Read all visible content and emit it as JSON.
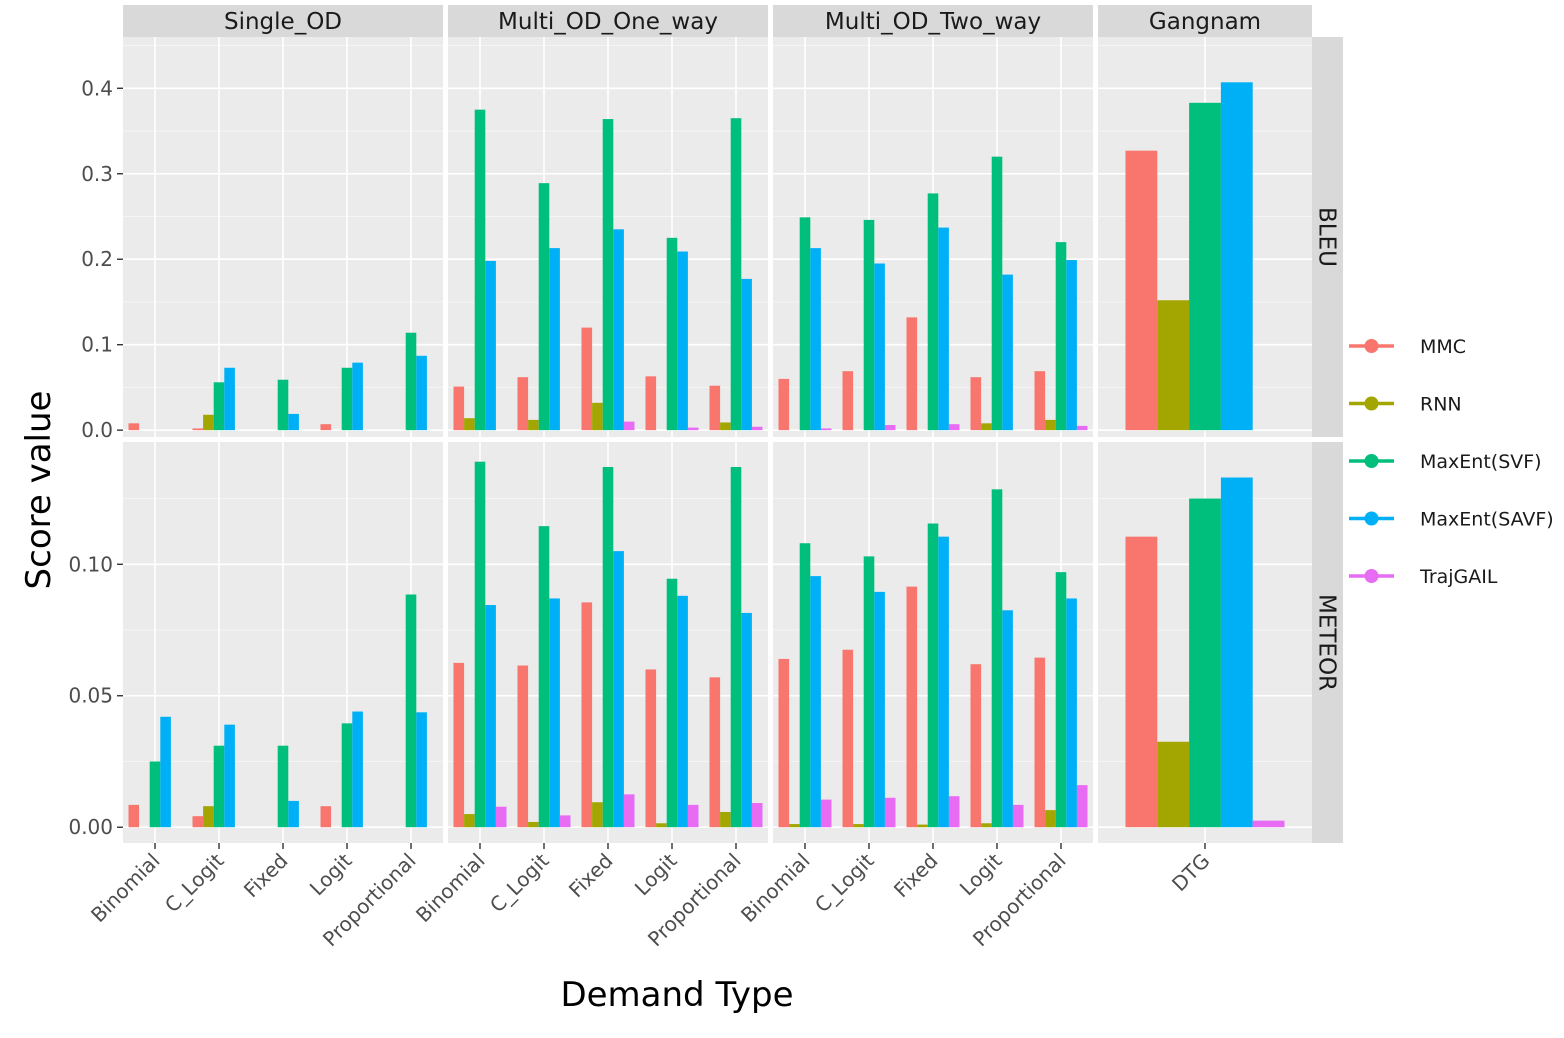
{
  "chart_data": {
    "type": "bar",
    "xlabel": "Demand Type",
    "ylabel": "Score value",
    "series_names": [
      "MMC",
      "RNN",
      "MaxEnt(SVF)",
      "MaxEnt(SAVF)",
      "TrajGAIL"
    ],
    "colors": {
      "MMC": "#F8766D",
      "RNN": "#A3A500",
      "MaxEnt(SVF)": "#00BF7D",
      "MaxEnt(SAVF)": "#00B0F6",
      "TrajGAIL": "#E76BF3"
    },
    "columns": [
      {
        "name": "Single_OD",
        "categories": [
          "Binomial",
          "C_Logit",
          "Fixed",
          "Logit",
          "Proportional"
        ]
      },
      {
        "name": "Multi_OD_One_way",
        "categories": [
          "Binomial",
          "C_Logit",
          "Fixed",
          "Logit",
          "Proportional"
        ]
      },
      {
        "name": "Multi_OD_Two_way",
        "categories": [
          "Binomial",
          "C_Logit",
          "Fixed",
          "Logit",
          "Proportional"
        ]
      },
      {
        "name": "Gangnam",
        "categories": [
          "DTG"
        ]
      }
    ],
    "rows": [
      {
        "name": "BLEU",
        "ylim": [
          -0.008,
          0.46
        ],
        "ticks": [
          0.0,
          0.1,
          0.2,
          0.3,
          0.4
        ],
        "tick_labels": [
          "0.0",
          "0.1",
          "0.2",
          "0.3",
          "0.4"
        ]
      },
      {
        "name": "METEOR",
        "ylim": [
          -0.006,
          0.1465
        ],
        "ticks": [
          0.0,
          0.05,
          0.1
        ],
        "tick_labels": [
          "0.00",
          "0.05",
          "0.10"
        ]
      }
    ],
    "values": {
      "BLEU": {
        "Single_OD": [
          [
            0.008,
            0.0,
            0.0,
            0.0,
            0.0
          ],
          [
            0.002,
            0.018,
            0.056,
            0.073,
            0.0
          ],
          [
            0.0,
            0.0,
            0.059,
            0.019,
            0.0
          ],
          [
            0.007,
            0.0,
            0.073,
            0.079,
            0.0
          ],
          [
            0.0,
            0.0,
            0.114,
            0.087,
            0.0
          ]
        ],
        "Multi_OD_One_way": [
          [
            0.051,
            0.014,
            0.375,
            0.198,
            0.0
          ],
          [
            0.062,
            0.012,
            0.289,
            0.213,
            0.0
          ],
          [
            0.12,
            0.032,
            0.364,
            0.235,
            0.01
          ],
          [
            0.063,
            0.0,
            0.225,
            0.209,
            0.003
          ],
          [
            0.052,
            0.009,
            0.365,
            0.177,
            0.004
          ]
        ],
        "Multi_OD_Two_way": [
          [
            0.06,
            0.0,
            0.249,
            0.213,
            0.002
          ],
          [
            0.069,
            0.0,
            0.246,
            0.195,
            0.006
          ],
          [
            0.132,
            0.0,
            0.277,
            0.237,
            0.007
          ],
          [
            0.062,
            0.008,
            0.32,
            0.182,
            0.0
          ],
          [
            0.069,
            0.012,
            0.22,
            0.199,
            0.005
          ]
        ],
        "Gangnam": [
          [
            0.327,
            0.152,
            0.383,
            0.407,
            0.0
          ]
        ]
      },
      "METEOR": {
        "Single_OD": [
          [
            0.0085,
            0.0,
            0.025,
            0.042,
            0.0
          ],
          [
            0.0042,
            0.008,
            0.031,
            0.039,
            0.0
          ],
          [
            0.0,
            0.0,
            0.031,
            0.01,
            0.0
          ],
          [
            0.008,
            0.0,
            0.0395,
            0.044,
            0.0
          ],
          [
            0.0,
            0.0,
            0.0885,
            0.0437,
            0.0
          ]
        ],
        "Multi_OD_One_way": [
          [
            0.0625,
            0.005,
            0.139,
            0.0845,
            0.0078
          ],
          [
            0.0615,
            0.002,
            0.1145,
            0.087,
            0.0045
          ],
          [
            0.0855,
            0.0095,
            0.137,
            0.105,
            0.0125
          ],
          [
            0.06,
            0.0015,
            0.0945,
            0.088,
            0.0085
          ],
          [
            0.057,
            0.0058,
            0.137,
            0.0815,
            0.0092
          ]
        ],
        "Multi_OD_Two_way": [
          [
            0.064,
            0.0012,
            0.108,
            0.0955,
            0.0105
          ],
          [
            0.0675,
            0.0012,
            0.103,
            0.0895,
            0.0112
          ],
          [
            0.0915,
            0.001,
            0.1155,
            0.1105,
            0.0118
          ],
          [
            0.062,
            0.0015,
            0.1285,
            0.0825,
            0.0085
          ],
          [
            0.0645,
            0.0065,
            0.097,
            0.087,
            0.016
          ]
        ],
        "Gangnam": [
          [
            0.1105,
            0.0325,
            0.125,
            0.133,
            0.0025
          ]
        ]
      }
    }
  }
}
